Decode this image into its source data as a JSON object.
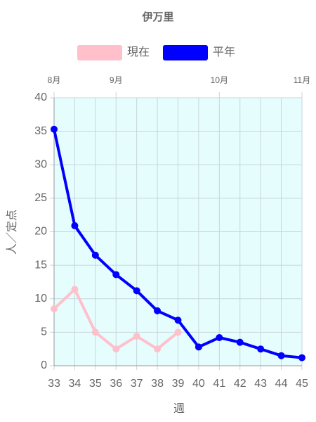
{
  "chart_data": {
    "type": "line",
    "title": "伊万里",
    "x": [
      33,
      34,
      35,
      36,
      37,
      38,
      39,
      40,
      41,
      42,
      43,
      44,
      45
    ],
    "series": [
      {
        "name": "現在",
        "color": "#ffc0cb",
        "values": [
          8.5,
          11.4,
          5.0,
          2.5,
          4.4,
          2.5,
          5.0,
          null,
          null,
          null,
          null,
          null,
          null
        ]
      },
      {
        "name": "平年",
        "color": "#0000ff",
        "values": [
          35.3,
          20.9,
          16.5,
          13.6,
          11.2,
          8.2,
          6.8,
          2.8,
          4.2,
          3.5,
          2.5,
          1.5,
          1.2
        ]
      }
    ],
    "xlim": [
      33,
      45
    ],
    "xticks": [
      33,
      34,
      35,
      36,
      37,
      38,
      39,
      40,
      41,
      42,
      43,
      44,
      45
    ],
    "top_ticks": [
      {
        "value": 33,
        "label": "8月"
      },
      {
        "value": 36,
        "label": "9月"
      },
      {
        "value": 41,
        "label": "10月"
      },
      {
        "value": 45,
        "label": "11月"
      }
    ],
    "ylim": [
      0,
      40
    ],
    "yticks": [
      0,
      5,
      10,
      15,
      20,
      25,
      30,
      35,
      40
    ],
    "xlabel": "週",
    "ylabel": "人／定点",
    "grid": true,
    "plot_background": "#e6fdfe"
  }
}
